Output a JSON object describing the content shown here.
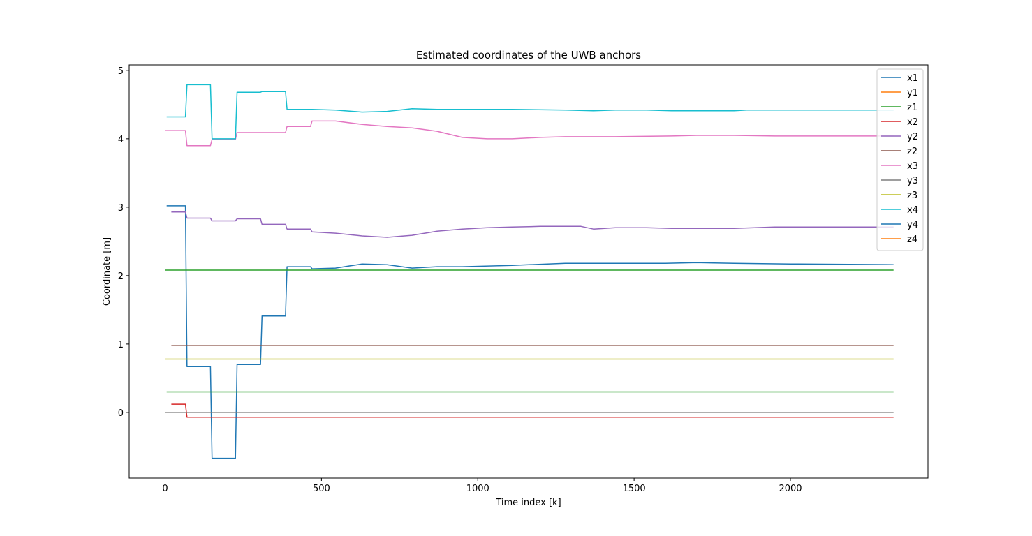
{
  "chart_data": {
    "type": "line",
    "title": "Estimated coordinates of the UWB anchors",
    "xlabel": "Time index [k]",
    "ylabel": "Coordinate [m]",
    "xlim": [
      -115,
      2440
    ],
    "ylim": [
      -0.96,
      5.08
    ],
    "xticks": [
      0,
      500,
      1000,
      1500,
      2000
    ],
    "yticks": [
      0,
      1,
      2,
      3,
      4,
      5
    ],
    "grid": false,
    "legend_position": "top-right",
    "series": [
      {
        "name": "x1",
        "color": "#1f77b4",
        "points": [
          [
            5,
            3.02
          ],
          [
            65,
            3.02
          ],
          [
            70,
            0.67
          ],
          [
            145,
            0.67
          ],
          [
            150,
            -0.67
          ],
          [
            225,
            -0.67
          ],
          [
            230,
            0.7
          ],
          [
            305,
            0.7
          ],
          [
            310,
            1.41
          ],
          [
            385,
            1.41
          ],
          [
            390,
            2.13
          ],
          [
            465,
            2.13
          ],
          [
            470,
            2.1
          ],
          [
            545,
            2.11
          ],
          [
            630,
            2.17
          ],
          [
            710,
            2.16
          ],
          [
            790,
            2.11
          ],
          [
            870,
            2.13
          ],
          [
            950,
            2.13
          ],
          [
            1110,
            2.15
          ],
          [
            1280,
            2.18
          ],
          [
            1440,
            2.18
          ],
          [
            1600,
            2.18
          ],
          [
            1700,
            2.19
          ],
          [
            1820,
            2.18
          ],
          [
            2000,
            2.17
          ],
          [
            2330,
            2.16
          ]
        ]
      },
      {
        "name": "y1",
        "color": "#ff7f0e",
        "points": []
      },
      {
        "name": "z1",
        "color": "#2ca02c",
        "points": [
          [
            0,
            2.08
          ],
          [
            2330,
            2.08
          ],
          null,
          [
            5,
            0.3
          ],
          [
            2330,
            0.3
          ]
        ]
      },
      {
        "name": "x2",
        "color": "#d62728",
        "points": [
          [
            20,
            0.12
          ],
          [
            65,
            0.12
          ],
          [
            70,
            -0.07
          ],
          [
            2330,
            -0.07
          ]
        ]
      },
      {
        "name": "y2",
        "color": "#9467bd",
        "points": [
          [
            20,
            2.93
          ],
          [
            65,
            2.93
          ],
          [
            70,
            2.84
          ],
          [
            145,
            2.84
          ],
          [
            150,
            2.8
          ],
          [
            225,
            2.8
          ],
          [
            230,
            2.83
          ],
          [
            305,
            2.83
          ],
          [
            310,
            2.75
          ],
          [
            385,
            2.75
          ],
          [
            390,
            2.68
          ],
          [
            465,
            2.68
          ],
          [
            470,
            2.64
          ],
          [
            545,
            2.62
          ],
          [
            630,
            2.58
          ],
          [
            710,
            2.56
          ],
          [
            790,
            2.59
          ],
          [
            870,
            2.65
          ],
          [
            950,
            2.68
          ],
          [
            1030,
            2.7
          ],
          [
            1110,
            2.71
          ],
          [
            1200,
            2.72
          ],
          [
            1330,
            2.72
          ],
          [
            1370,
            2.68
          ],
          [
            1440,
            2.7
          ],
          [
            1540,
            2.7
          ],
          [
            1620,
            2.69
          ],
          [
            1820,
            2.69
          ],
          [
            1950,
            2.71
          ],
          [
            2330,
            2.71
          ]
        ]
      },
      {
        "name": "z2",
        "color": "#8c564b",
        "points": [
          [
            20,
            0.98
          ],
          [
            2330,
            0.98
          ]
        ]
      },
      {
        "name": "x3",
        "color": "#e377c2",
        "points": [
          [
            0,
            4.12
          ],
          [
            65,
            4.12
          ],
          [
            70,
            3.9
          ],
          [
            145,
            3.9
          ],
          [
            150,
            3.99
          ],
          [
            225,
            3.99
          ],
          [
            230,
            4.09
          ],
          [
            305,
            4.09
          ],
          [
            310,
            4.09
          ],
          [
            385,
            4.09
          ],
          [
            390,
            4.18
          ],
          [
            465,
            4.18
          ],
          [
            470,
            4.26
          ],
          [
            545,
            4.26
          ],
          [
            630,
            4.21
          ],
          [
            710,
            4.18
          ],
          [
            790,
            4.16
          ],
          [
            870,
            4.11
          ],
          [
            950,
            4.02
          ],
          [
            1030,
            4.0
          ],
          [
            1110,
            4.0
          ],
          [
            1200,
            4.02
          ],
          [
            1280,
            4.03
          ],
          [
            1440,
            4.03
          ],
          [
            1620,
            4.04
          ],
          [
            1700,
            4.05
          ],
          [
            1820,
            4.05
          ],
          [
            1950,
            4.04
          ],
          [
            2330,
            4.04
          ]
        ]
      },
      {
        "name": "y3",
        "color": "#7f7f7f",
        "points": [
          [
            0,
            0.0
          ],
          [
            2330,
            0.0
          ]
        ]
      },
      {
        "name": "z3",
        "color": "#bcbd22",
        "points": [
          [
            0,
            0.78
          ],
          [
            2330,
            0.78
          ]
        ]
      },
      {
        "name": "x4",
        "color": "#17becf",
        "points": [
          [
            5,
            4.32
          ],
          [
            65,
            4.32
          ],
          [
            70,
            4.79
          ],
          [
            145,
            4.79
          ],
          [
            150,
            4.0
          ],
          [
            225,
            4.0
          ],
          [
            230,
            4.68
          ],
          [
            305,
            4.68
          ],
          [
            310,
            4.69
          ],
          [
            385,
            4.69
          ],
          [
            390,
            4.43
          ],
          [
            465,
            4.43
          ],
          [
            470,
            4.43
          ],
          [
            545,
            4.42
          ],
          [
            630,
            4.39
          ],
          [
            710,
            4.4
          ],
          [
            790,
            4.44
          ],
          [
            870,
            4.43
          ],
          [
            950,
            4.43
          ],
          [
            1110,
            4.43
          ],
          [
            1280,
            4.42
          ],
          [
            1370,
            4.41
          ],
          [
            1440,
            4.42
          ],
          [
            1540,
            4.42
          ],
          [
            1620,
            4.41
          ],
          [
            1820,
            4.41
          ],
          [
            1860,
            4.42
          ],
          [
            2330,
            4.42
          ]
        ]
      },
      {
        "name": "y4",
        "color": "#1f77b4",
        "points": []
      },
      {
        "name": "z4",
        "color": "#ff7f0e",
        "points": []
      }
    ]
  }
}
